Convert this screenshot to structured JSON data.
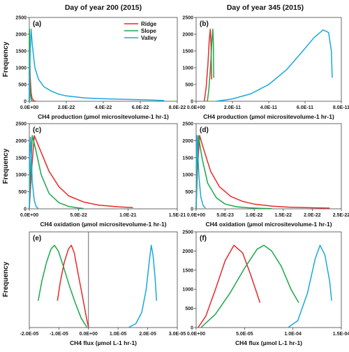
{
  "figure": {
    "col_titles": [
      "Day of year 200 (2015)",
      "Day of year 345 (2015)"
    ],
    "ylabel": "Frequency",
    "legend": [
      {
        "name": "Ridge",
        "color": "#e8282b"
      },
      {
        "name": "Slope",
        "color": "#19a84a"
      },
      {
        "name": "Valley",
        "color": "#1aa7df"
      }
    ]
  },
  "chart_data": [
    {
      "panel": "(a)",
      "type": "line",
      "xlabel": "CH4 production (µmol micrositevolume-1 hr-1)",
      "x_ticks": [
        "0.0E+00",
        "2.0E-22",
        "4.0E-22",
        "6.0E-22",
        "8.0E-22"
      ],
      "xlim": [
        0,
        8e-22
      ],
      "y_ticks": [
        "0",
        "500",
        "1000",
        "1500",
        "2000",
        "2500"
      ],
      "ylim": [
        0,
        2500
      ],
      "series": [
        {
          "name": "Ridge",
          "color": "#e8282b",
          "points": [
            [
              0.0,
              0
            ],
            [
              3e-25,
              1000
            ],
            [
              8e-25,
              2150
            ],
            [
              2e-24,
              1500
            ],
            [
              5e-24,
              700
            ],
            [
              1e-23,
              250
            ],
            [
              1.5e-23,
              80
            ],
            [
              2.5e-23,
              10
            ],
            [
              3.5e-23,
              0
            ]
          ]
        },
        {
          "name": "Slope",
          "color": "#19a84a",
          "points": [
            [
              0.0,
              0
            ],
            [
              2e-25,
              1200
            ],
            [
              4e-25,
              2150
            ],
            [
              1e-24,
              1500
            ],
            [
              3e-24,
              600
            ],
            [
              6e-24,
              200
            ],
            [
              1e-23,
              50
            ],
            [
              1.5e-23,
              5
            ],
            [
              2e-23,
              0
            ]
          ]
        },
        {
          "name": "Valley",
          "color": "#1aa7df",
          "points": [
            [
              0.0,
              0
            ],
            [
              5e-24,
              1500
            ],
            [
              1e-23,
              2150
            ],
            [
              1.6e-23,
              1700
            ],
            [
              3e-23,
              1000
            ],
            [
              5e-23,
              650
            ],
            [
              8e-23,
              430
            ],
            [
              1.2e-22,
              300
            ],
            [
              1.6e-22,
              210
            ],
            [
              2e-22,
              160
            ],
            [
              3e-22,
              100
            ],
            [
              4e-22,
              75
            ],
            [
              5e-22,
              60
            ],
            [
              6e-22,
              45
            ],
            [
              7e-22,
              30
            ],
            [
              7.3e-22,
              20
            ]
          ]
        }
      ]
    },
    {
      "panel": "(b)",
      "type": "line",
      "xlabel": "CH4 production (µmol micrositevolume-1 hr-1)",
      "x_ticks": [
        "0.0E+00",
        "2.0E-11",
        "4.0E-11",
        "6.0E-11",
        "8.0E-11"
      ],
      "xlim": [
        0,
        8e-11
      ],
      "y_ticks": [
        "0",
        "500",
        "1000",
        "1500",
        "2000",
        "2500"
      ],
      "ylim": [
        0,
        2500
      ],
      "series": [
        {
          "name": "Ridge",
          "color": "#e8282b",
          "points": [
            [
              4.5e-12,
              0
            ],
            [
              5.5e-12,
              400
            ],
            [
              6.5e-12,
              1100
            ],
            [
              7.2e-12,
              1800
            ],
            [
              7.8e-12,
              2150
            ],
            [
              8.2e-12,
              1700
            ],
            [
              8.5e-12,
              650
            ]
          ]
        },
        {
          "name": "Slope",
          "color": "#19a84a",
          "points": [
            [
              6.2e-12,
              0
            ],
            [
              7e-12,
              350
            ],
            [
              8e-12,
              1100
            ],
            [
              8.7e-12,
              1800
            ],
            [
              9.2e-12,
              2150
            ],
            [
              9.5e-12,
              1700
            ],
            [
              9.7e-12,
              700
            ]
          ]
        },
        {
          "name": "Valley",
          "color": "#1aa7df",
          "points": [
            [
              1.1e-11,
              0
            ],
            [
              2e-11,
              70
            ],
            [
              3e-11,
              220
            ],
            [
              4e-11,
              500
            ],
            [
              5e-11,
              950
            ],
            [
              5.8e-11,
              1450
            ],
            [
              6.5e-11,
              1900
            ],
            [
              7e-11,
              2130
            ],
            [
              7.3e-11,
              2050
            ],
            [
              7.45e-11,
              1500
            ],
            [
              7.5e-11,
              700
            ]
          ]
        }
      ]
    },
    {
      "panel": "(c)",
      "type": "line",
      "xlabel": "CH4 oxidation (µmol micrositevolume-1 hr-1)",
      "x_ticks": [
        "0.0E+00",
        "5.0E-22",
        "1.0E-21",
        "1.5E-21"
      ],
      "xlim": [
        0,
        1.5e-21
      ],
      "y_ticks": [
        "0",
        "500",
        "1000",
        "1500",
        "2000",
        "2500"
      ],
      "ylim": [
        0,
        2500
      ],
      "series": [
        {
          "name": "Ridge",
          "color": "#e8282b",
          "points": [
            [
              0.0,
              0
            ],
            [
              2e-23,
              1000
            ],
            [
              5e-23,
              2150
            ],
            [
              1e-22,
              1800
            ],
            [
              2e-22,
              1100
            ],
            [
              3e-22,
              650
            ],
            [
              4e-22,
              380
            ],
            [
              5.5e-22,
              200
            ],
            [
              7e-22,
              110
            ],
            [
              9e-22,
              60
            ],
            [
              1.05e-21,
              35
            ]
          ]
        },
        {
          "name": "Slope",
          "color": "#19a84a",
          "points": [
            [
              0.0,
              0
            ],
            [
              1e-23,
              900
            ],
            [
              3e-23,
              2150
            ],
            [
              6e-23,
              1800
            ],
            [
              1.2e-22,
              1000
            ],
            [
              2e-22,
              450
            ],
            [
              3e-22,
              180
            ],
            [
              4e-22,
              70
            ],
            [
              5e-22,
              25
            ],
            [
              5.5e-22,
              10
            ]
          ]
        },
        {
          "name": "Valley",
          "color": "#1aa7df",
          "points": [
            [
              0.0,
              0
            ],
            [
              5e-24,
              1500
            ],
            [
              1.2e-23,
              2100
            ],
            [
              2e-23,
              1600
            ],
            [
              3e-23,
              800
            ],
            [
              5e-23,
              250
            ],
            [
              7e-23,
              60
            ],
            [
              9e-23,
              10
            ]
          ]
        }
      ]
    },
    {
      "panel": "(d)",
      "type": "line",
      "xlabel": "CH4 oxidation (µmol micrositevolume-1 hr-1)",
      "x_ticks": [
        "0.0E+00",
        "5.0E-23",
        "1.0E-22",
        "1.5E-22",
        "2.0E-22",
        "2.5E-22"
      ],
      "xlim": [
        0,
        2.5e-22
      ],
      "y_ticks": [
        "0",
        "500",
        "1000",
        "1500",
        "2000",
        "2500"
      ],
      "ylim": [
        0,
        2500
      ],
      "series": [
        {
          "name": "Ridge",
          "color": "#e8282b",
          "points": [
            [
              0.0,
              0
            ],
            [
              2e-24,
              1100
            ],
            [
              6e-24,
              2150
            ],
            [
              1.2e-23,
              1800
            ],
            [
              2.5e-23,
              1100
            ],
            [
              4e-23,
              650
            ],
            [
              6e-23,
              360
            ],
            [
              8e-23,
              220
            ],
            [
              1e-22,
              140
            ],
            [
              1.3e-22,
              80
            ],
            [
              1.6e-22,
              50
            ],
            [
              2e-22,
              30
            ],
            [
              2.3e-22,
              20
            ]
          ]
        },
        {
          "name": "Slope",
          "color": "#19a84a",
          "points": [
            [
              0.0,
              0
            ],
            [
              1.5e-24,
              1200
            ],
            [
              4e-24,
              2150
            ],
            [
              1e-23,
              1500
            ],
            [
              2e-23,
              750
            ],
            [
              3.5e-23,
              320
            ],
            [
              5e-23,
              140
            ],
            [
              7e-23,
              60
            ],
            [
              9e-23,
              30
            ],
            [
              1.1e-22,
              15
            ],
            [
              1.3e-22,
              8
            ]
          ]
        },
        {
          "name": "Valley",
          "color": "#1aa7df",
          "points": [
            [
              0.0,
              0
            ],
            [
              5e-25,
              1500
            ],
            [
              1.5e-24,
              2150
            ],
            [
              3e-24,
              1600
            ],
            [
              5e-24,
              900
            ],
            [
              8e-24,
              350
            ],
            [
              1.2e-23,
              100
            ],
            [
              1.6e-23,
              20
            ]
          ]
        }
      ]
    },
    {
      "panel": "(e)",
      "type": "line",
      "xlabel": "CH4 flux (µmol L-1 hr-1)",
      "x_ticks": [
        "-2.0E-05",
        "-1.0E-05",
        "0.0E+00",
        "1.0E-05",
        "2.0E-05",
        "3.0E-05"
      ],
      "xlim": [
        -2e-05,
        3e-05
      ],
      "y_ticks": [],
      "ylim": [
        0,
        2500
      ],
      "series": [
        {
          "name": "Ridge",
          "color": "#e8282b",
          "points": [
            [
              -1.05e-05,
              700
            ],
            [
              -9.5e-06,
              1200
            ],
            [
              -8.2e-06,
              1700
            ],
            [
              -6.8e-06,
              2050
            ],
            [
              -5.8e-06,
              2150
            ],
            [
              -4.8e-06,
              1950
            ],
            [
              -3.5e-06,
              1400
            ],
            [
              -2e-06,
              800
            ],
            [
              -8e-07,
              300
            ],
            [
              0.0,
              0
            ]
          ]
        },
        {
          "name": "Slope",
          "color": "#19a84a",
          "points": [
            [
              -1.7e-05,
              700
            ],
            [
              -1.58e-05,
              1200
            ],
            [
              -1.42e-05,
              1700
            ],
            [
              -1.27e-05,
              2050
            ],
            [
              -1.15e-05,
              2150
            ],
            [
              -1.02e-05,
              2000
            ],
            [
              -8.5e-06,
              1600
            ],
            [
              -6.5e-06,
              1100
            ],
            [
              -4.5e-06,
              650
            ],
            [
              -2.5e-06,
              250
            ],
            [
              -5e-07,
              0
            ]
          ]
        },
        {
          "name": "Valley",
          "color": "#1aa7df",
          "points": [
            [
              1.35e-05,
              0
            ],
            [
              1.6e-05,
              100
            ],
            [
              1.8e-05,
              400
            ],
            [
              1.95e-05,
              1000
            ],
            [
              2.05e-05,
              1700
            ],
            [
              2.12e-05,
              2150
            ],
            [
              2.18e-05,
              1900
            ],
            [
              2.25e-05,
              1300
            ],
            [
              2.3e-05,
              700
            ]
          ]
        }
      ]
    },
    {
      "panel": "(f)",
      "type": "line",
      "xlabel": "CH4 flux (µmol L-1 hr-1)",
      "x_ticks": [
        "0.0E+00",
        "5.0E-05",
        "1.0E-04",
        "1.5E-04"
      ],
      "xlim": [
        0,
        0.00015
      ],
      "y_ticks": [
        "0",
        "500",
        "1000",
        "1500",
        "2000",
        "2500"
      ],
      "ylim": [
        0,
        2500
      ],
      "series": [
        {
          "name": "Ridge",
          "color": "#e8282b",
          "points": [
            [
              2e-06,
              0
            ],
            [
              1e-05,
              300
            ],
            [
              2e-05,
              1000
            ],
            [
              3e-05,
              1750
            ],
            [
              3.9e-05,
              2150
            ],
            [
              4.8e-05,
              1950
            ],
            [
              5.6e-05,
              1400
            ],
            [
              6.2e-05,
              950
            ],
            [
              6.6e-05,
              650
            ]
          ]
        },
        {
          "name": "Slope",
          "color": "#19a84a",
          "points": [
            [
              5e-06,
              0
            ],
            [
              2e-05,
              350
            ],
            [
              3.5e-05,
              900
            ],
            [
              5e-05,
              1550
            ],
            [
              6.3e-05,
              2050
            ],
            [
              7e-05,
              2150
            ],
            [
              7.8e-05,
              2000
            ],
            [
              8.8e-05,
              1600
            ],
            [
              9.8e-05,
              1000
            ],
            [
              0.000106,
              650
            ]
          ]
        },
        {
          "name": "Valley",
          "color": "#1aa7df",
          "points": [
            [
              9.5e-05,
              0
            ],
            [
              0.000105,
              180
            ],
            [
              0.000115,
              900
            ],
            [
              0.000123,
              1800
            ],
            [
              0.000128,
              2150
            ],
            [
              0.000133,
              1900
            ],
            [
              0.000138,
              1200
            ],
            [
              0.00014,
              700
            ]
          ]
        }
      ]
    }
  ]
}
